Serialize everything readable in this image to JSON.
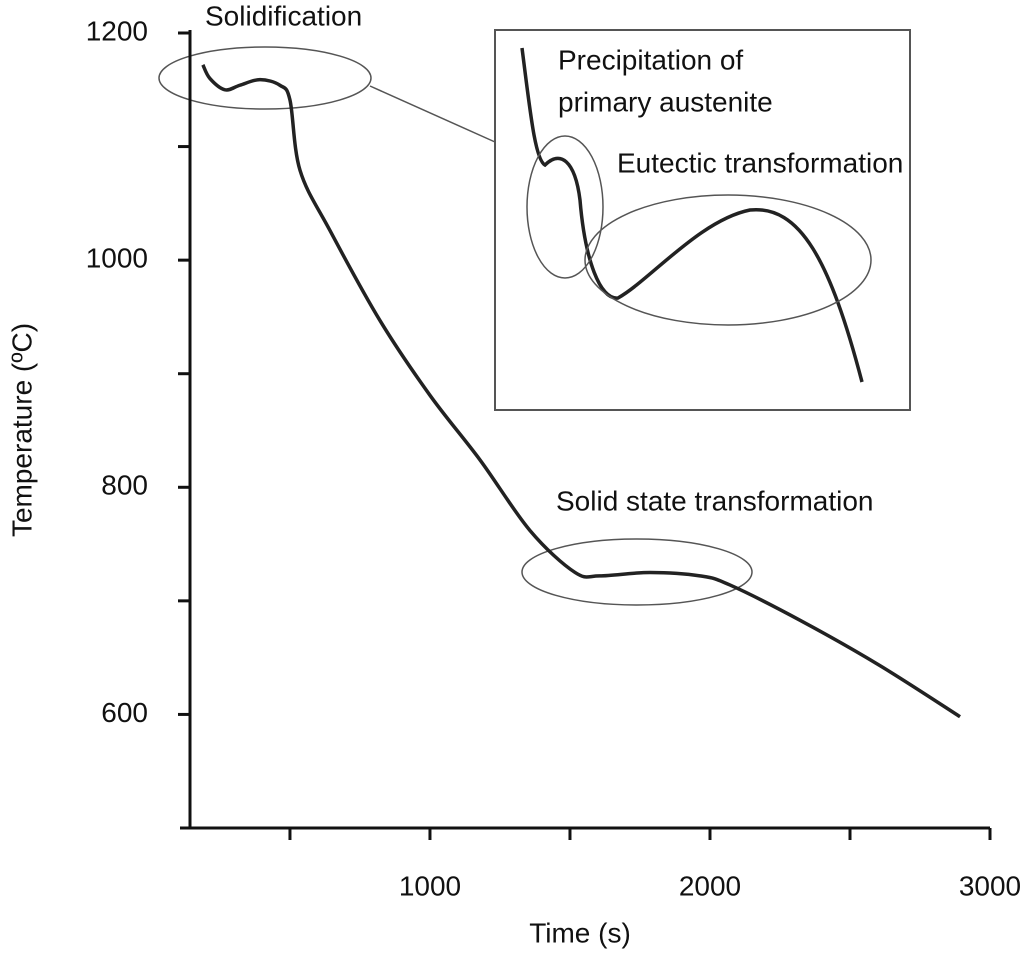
{
  "chart_data": {
    "type": "line",
    "xlabel": "Time (s)",
    "ylabel": "Temperature (ºC)",
    "x": [
      189,
      214,
      268,
      321,
      393,
      464,
      500,
      536,
      643,
      821,
      1000,
      1179,
      1357,
      1518,
      1607,
      1786,
      1964,
      2071,
      2321,
      2607,
      2893
    ],
    "values": [
      1172,
      1160,
      1150,
      1154,
      1159,
      1154,
      1141,
      1079,
      1026,
      947,
      881,
      824,
      762,
      725,
      722,
      725,
      722,
      714,
      683,
      643,
      598
    ],
    "color": "#222222",
    "xlim": [
      143,
      3000
    ],
    "xticks": [
      1000,
      2000,
      3000
    ],
    "xminorticks": [
      500,
      1500,
      2500
    ],
    "ylim": [
      500,
      1200
    ],
    "yticks": [
      600,
      800,
      1000,
      1200
    ],
    "yminorticks": [
      700,
      900,
      1100
    ],
    "annotations": [
      "Solidification",
      "Precipitation of",
      "primary austenite",
      "Eutectic transformation",
      "Solid state transformation"
    ]
  }
}
